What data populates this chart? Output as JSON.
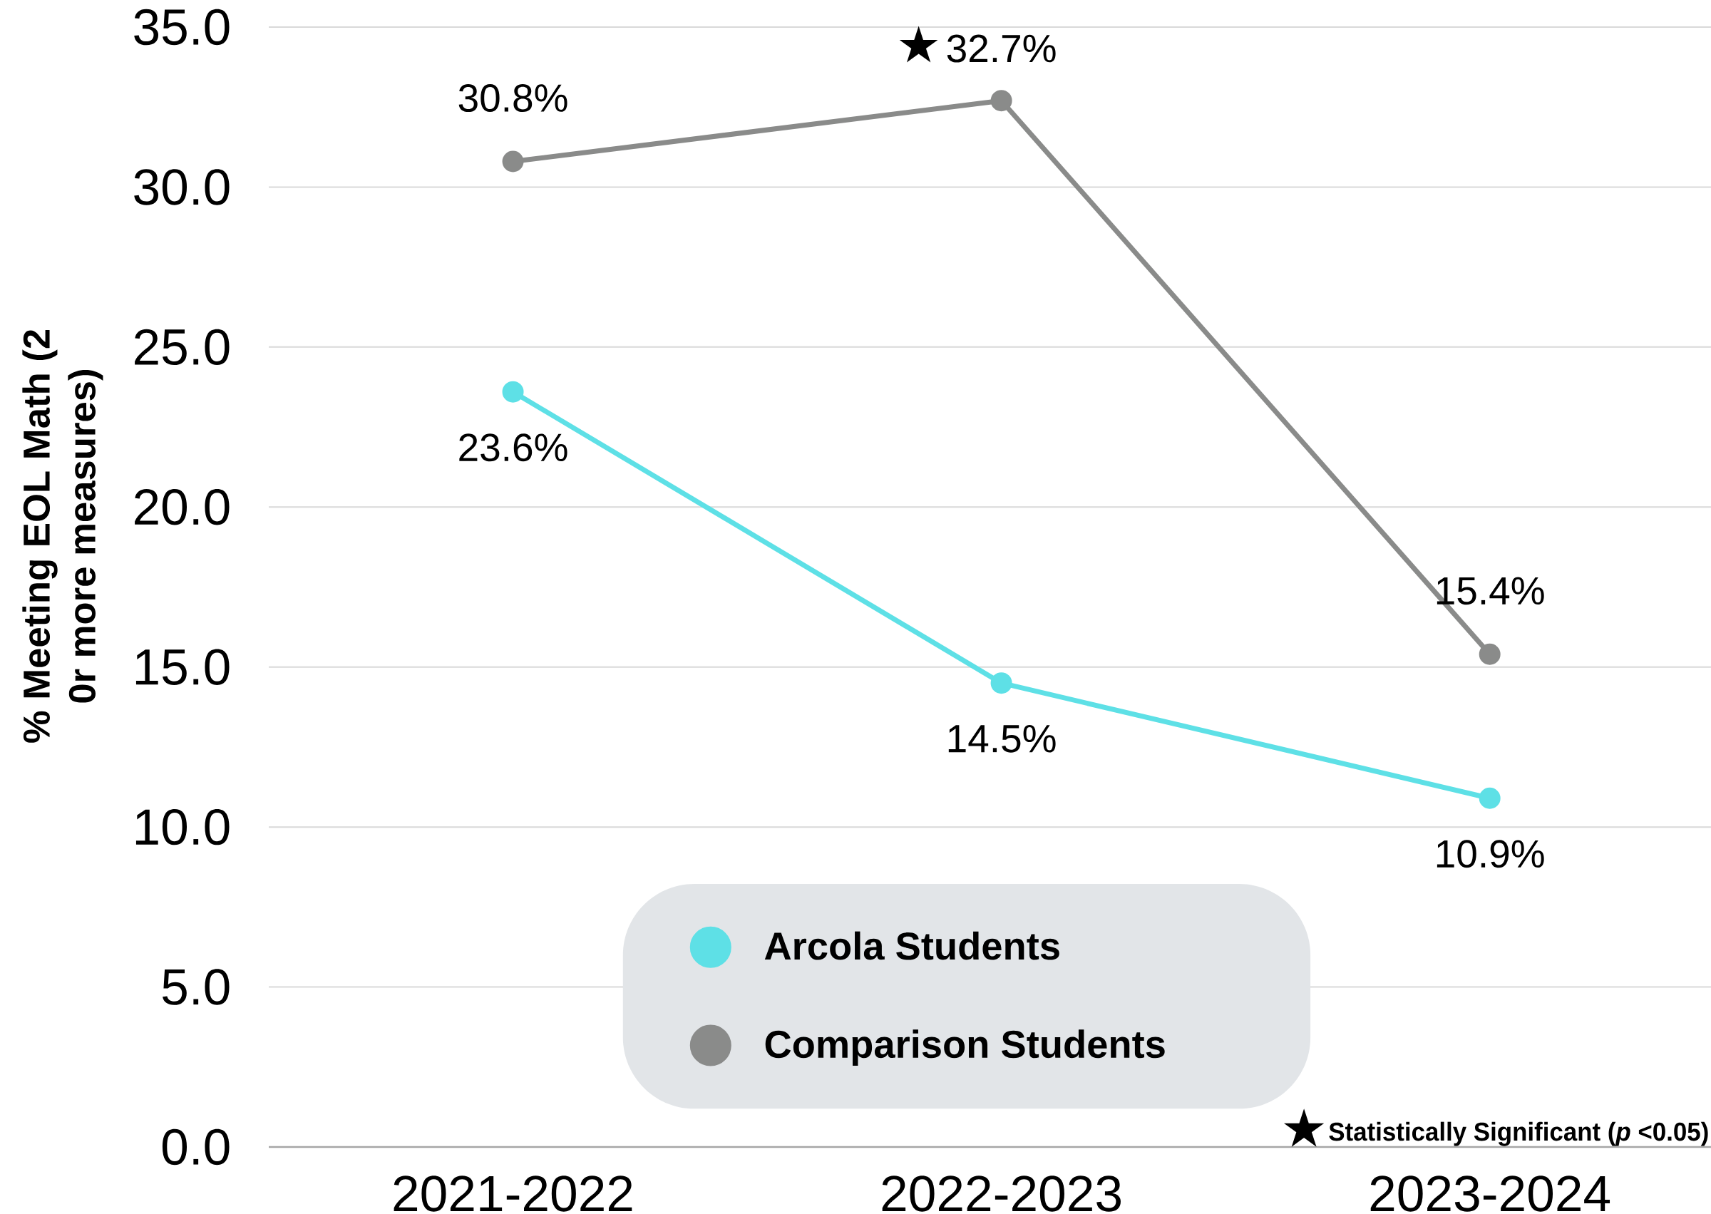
{
  "chart_data": {
    "type": "line",
    "ylabel": "% Meeting EOL Math (2 0r more measures)",
    "categories": [
      "2021-2022",
      "2022-2023",
      "2023-2024"
    ],
    "series": [
      {
        "name": "Arcola Students",
        "color": "#5EE0E6",
        "values": [
          23.6,
          14.5,
          10.9
        ],
        "value_labels": [
          "23.6%",
          "14.5%",
          "10.9%"
        ]
      },
      {
        "name": "Comparison Students",
        "color": "#8A8B8A",
        "values": [
          30.8,
          32.7,
          15.4
        ],
        "value_labels": [
          "30.8%",
          "32.7%",
          "15.4%"
        ]
      }
    ],
    "ylim": [
      0,
      35
    ],
    "yticks": [
      {
        "value": 0,
        "label": "0.0"
      },
      {
        "value": 5,
        "label": "5.0"
      },
      {
        "value": 10,
        "label": "10.0"
      },
      {
        "value": 15,
        "label": "15.0"
      },
      {
        "value": 20,
        "label": "20.0"
      },
      {
        "value": 25,
        "label": "25.0"
      },
      {
        "value": 30,
        "label": "30.0"
      },
      {
        "value": 35,
        "label": "35.0"
      }
    ],
    "grid": "y",
    "legend": "bottom",
    "marker": "circle",
    "line_style": "solid",
    "annotations": [
      {
        "text": "★",
        "x": "2022-2023",
        "y": 32.7
      },
      "★",
      "Statistically Significant (*p* <0.05)"
    ]
  }
}
